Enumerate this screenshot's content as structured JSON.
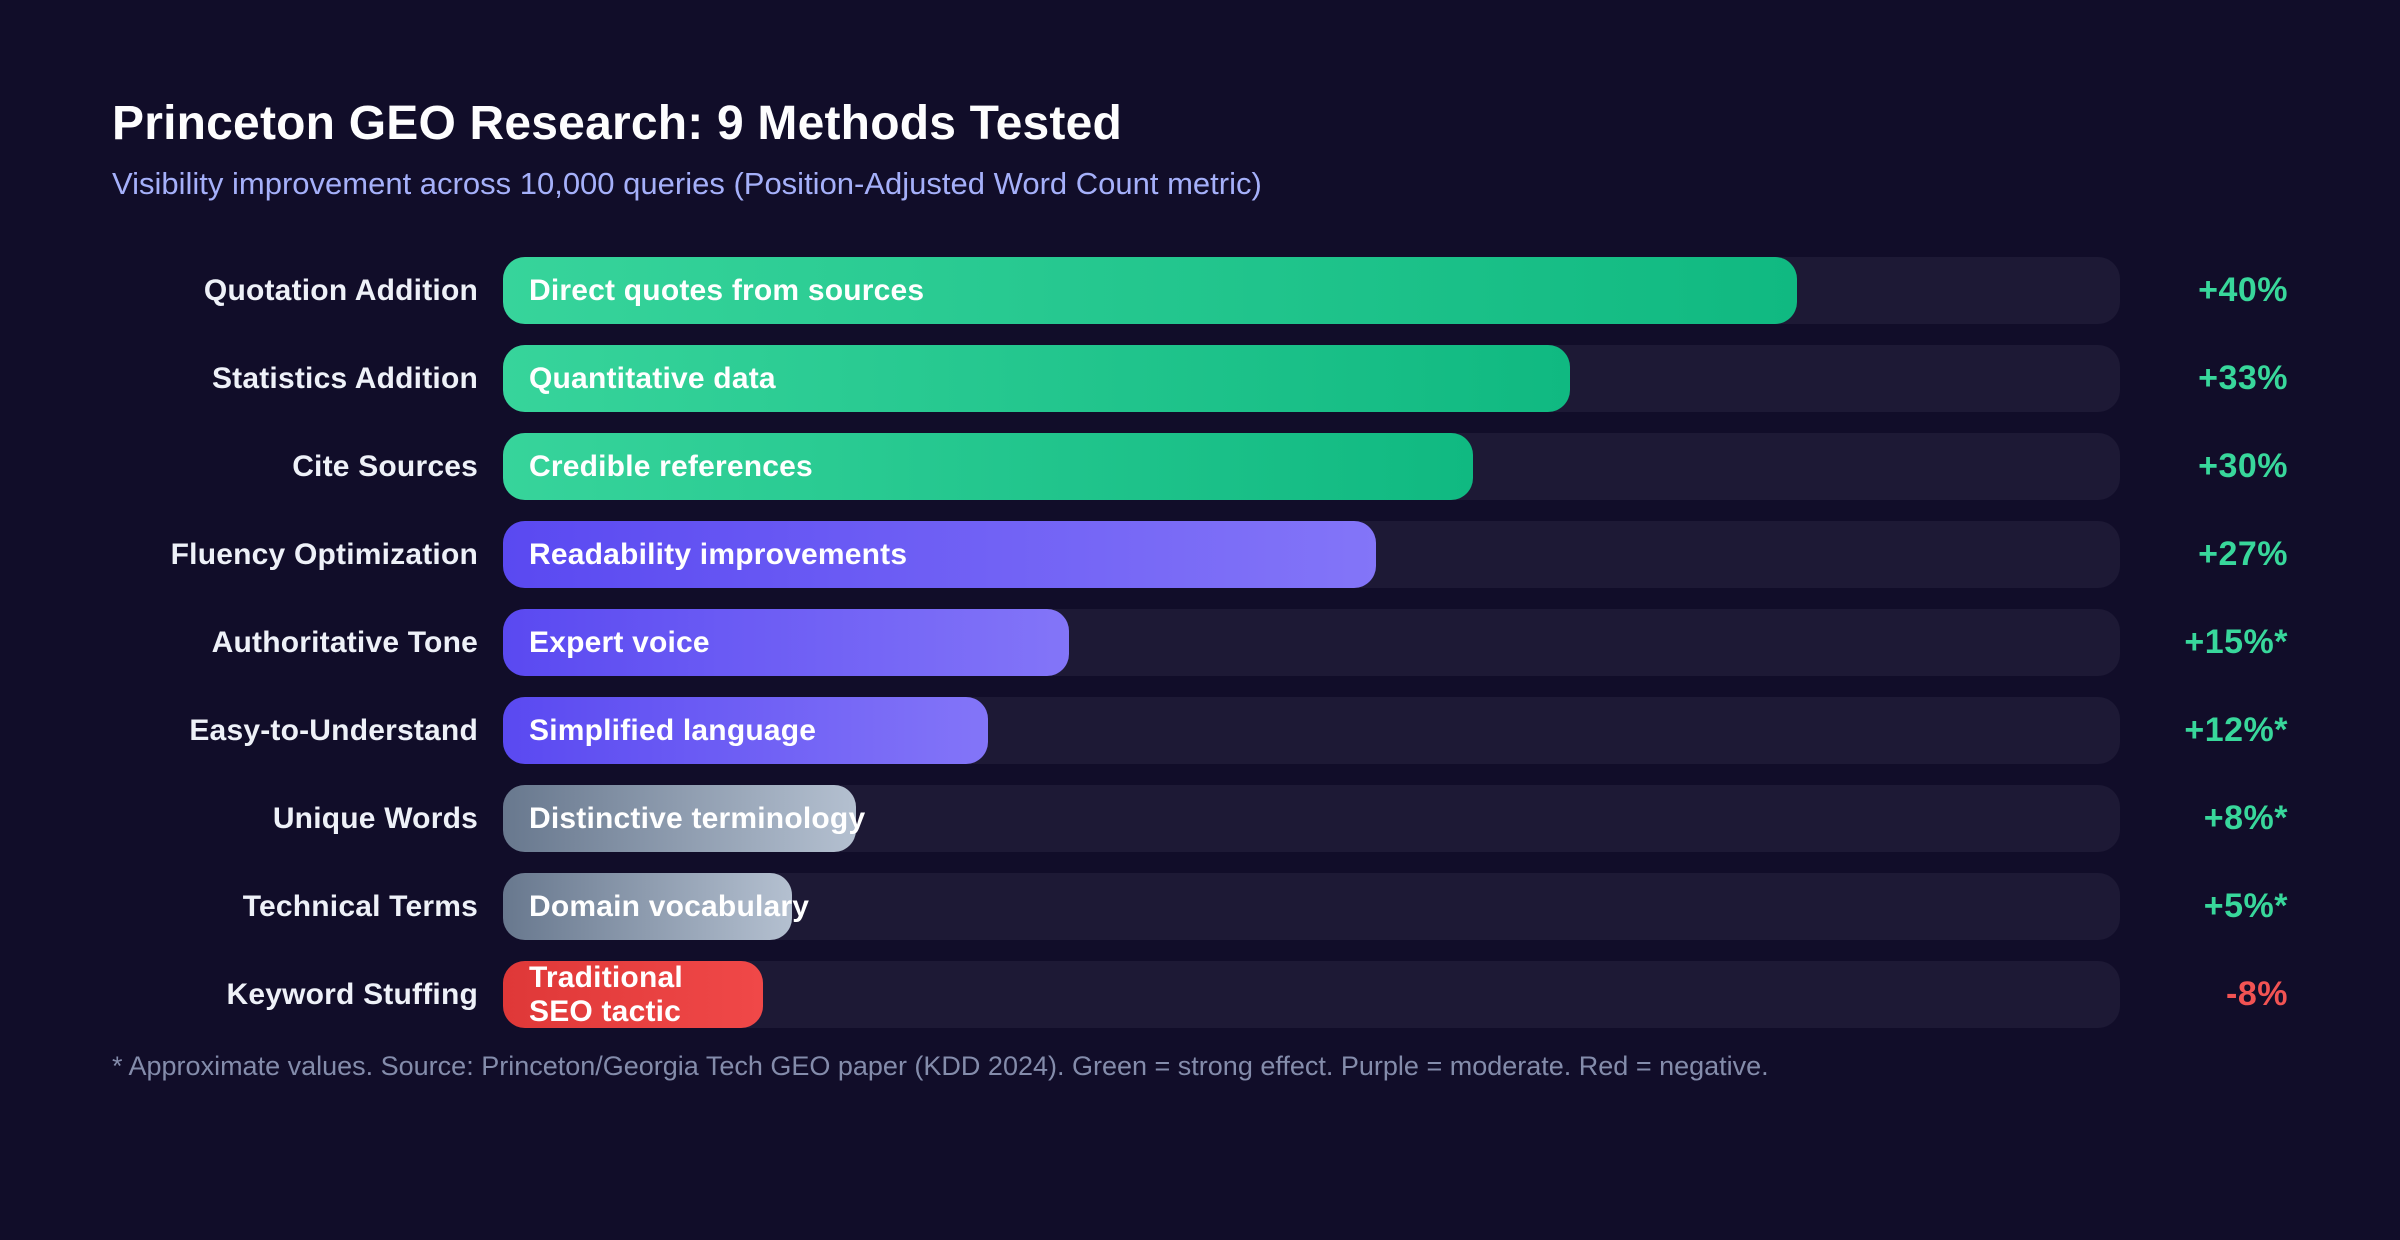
{
  "header": {
    "title": "Princeton GEO Research: 9 Methods Tested",
    "subtitle": "Visibility improvement across 10,000 queries (Position-Adjusted Word Count metric)"
  },
  "footer": {
    "note": "* Approximate values. Source: Princeton/Georgia Tech GEO paper (KDD 2024). Green = strong effect. Purple = moderate. Red = negative."
  },
  "colors": {
    "background": "#110d29",
    "track": "#1d1935",
    "title_text": "#fdfdfe",
    "subtitle_text": "#a5b0fa",
    "label_text": "#eef1f8",
    "bar_text": "#ffffff",
    "footnote_text": "#848cab",
    "value_positive": "#38d79b",
    "value_negative": "#f25353",
    "green_gradient": [
      "#37d49b",
      "#10b981"
    ],
    "purple_gradient": [
      "#5a49f1",
      "#8375f8"
    ],
    "gray_gradient": [
      "#68788e",
      "#b4c0d0"
    ],
    "red_gradient": [
      "#df3838",
      "#f04848"
    ]
  },
  "chart_data": {
    "type": "bar",
    "orientation": "horizontal",
    "title": "Princeton GEO Research: 9 Methods Tested",
    "subtitle": "Visibility improvement across 10,000 queries (Position-Adjusted Word Count metric)",
    "unit": "%",
    "xlim": [
      0,
      50
    ],
    "grid": false,
    "legend": "color-coded: green = strong effect, purple = moderate, gray = weak, red = negative",
    "categories": [
      "Quotation Addition",
      "Statistics Addition",
      "Cite Sources",
      "Fluency Optimization",
      "Authoritative Tone",
      "Easy-to-Understand",
      "Unique Words",
      "Technical Terms",
      "Keyword Stuffing"
    ],
    "values": [
      40,
      33,
      30,
      27,
      15,
      12,
      8,
      5,
      -8
    ],
    "rows": [
      {
        "label": "Quotation Addition",
        "bar_text": "Direct quotes from sources",
        "value": 40,
        "value_label": "+40%",
        "color_group": "green",
        "width_pct": 80,
        "two_line": false
      },
      {
        "label": "Statistics Addition",
        "bar_text": "Quantitative data",
        "value": 33,
        "value_label": "+33%",
        "color_group": "green",
        "width_pct": 66,
        "two_line": false
      },
      {
        "label": "Cite Sources",
        "bar_text": "Credible references",
        "value": 30,
        "value_label": "+30%",
        "color_group": "green",
        "width_pct": 60,
        "two_line": false
      },
      {
        "label": "Fluency Optimization",
        "bar_text": "Readability improvements",
        "value": 27,
        "value_label": "+27%",
        "color_group": "purple",
        "width_pct": 54,
        "two_line": false
      },
      {
        "label": "Authoritative Tone",
        "bar_text": "Expert voice",
        "value": 15,
        "value_label": "+15%*",
        "color_group": "purple",
        "width_pct": 35,
        "two_line": false
      },
      {
        "label": "Easy-to-Understand",
        "bar_text": "Simplified language",
        "value": 12,
        "value_label": "+12%*",
        "color_group": "purple",
        "width_pct": 30,
        "two_line": false
      },
      {
        "label": "Unique Words",
        "bar_text": "Distinctive terminology",
        "value": 8,
        "value_label": "+8%*",
        "color_group": "gray",
        "width_pct": 21.8,
        "two_line": false
      },
      {
        "label": "Technical Terms",
        "bar_text": "Domain vocabulary",
        "value": 5,
        "value_label": "+5%*",
        "color_group": "gray",
        "width_pct": 17.9,
        "two_line": false
      },
      {
        "label": "Keyword Stuffing",
        "bar_text": "Traditional SEO tactic",
        "value": -8,
        "value_label": "-8%",
        "color_group": "red",
        "width_pct": 16.1,
        "two_line": true
      }
    ]
  }
}
